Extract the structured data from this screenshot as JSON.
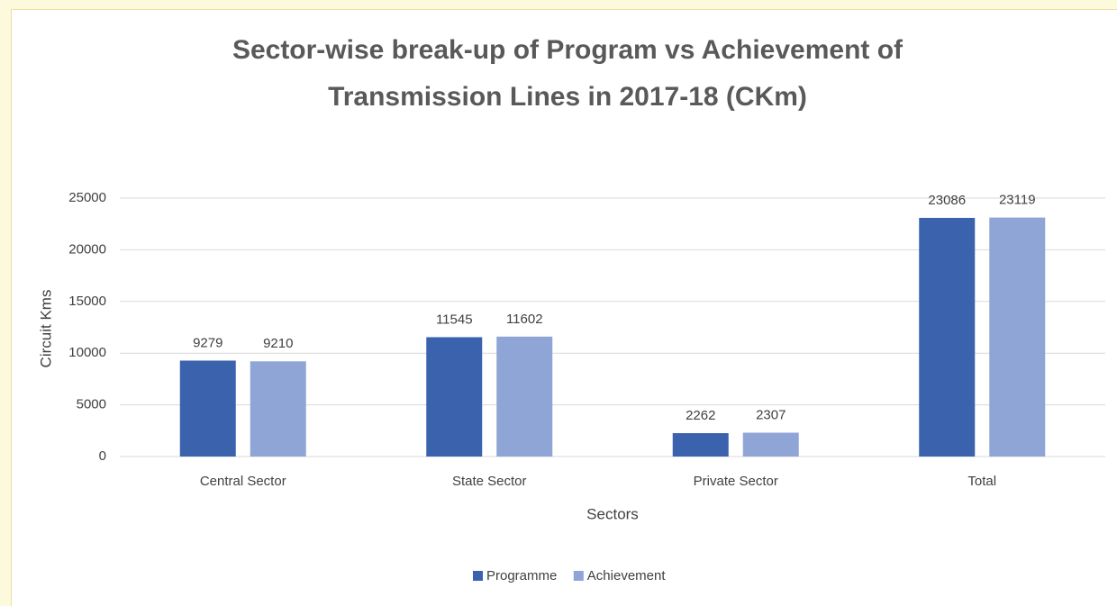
{
  "chart_data": {
    "type": "bar",
    "title": "Sector-wise break-up of Program vs Achievement of Transmission Lines in 2017-18 (CKm)",
    "x_label": "Sectors",
    "y_label": "Circuit Kms",
    "categories": [
      "Central Sector",
      "State Sector",
      "Private Sector",
      "Total"
    ],
    "series": [
      {
        "name": "Programme",
        "color": "#3a62ad",
        "values": [
          9279,
          11545,
          2262,
          23086
        ]
      },
      {
        "name": "Achievement",
        "color": "#8fa5d6",
        "values": [
          9210,
          11602,
          2307,
          23119
        ]
      }
    ],
    "ylim": [
      0,
      25000
    ],
    "yticks": [
      0,
      5000,
      10000,
      15000,
      20000,
      25000
    ],
    "grid": true,
    "legend": "bottom"
  }
}
